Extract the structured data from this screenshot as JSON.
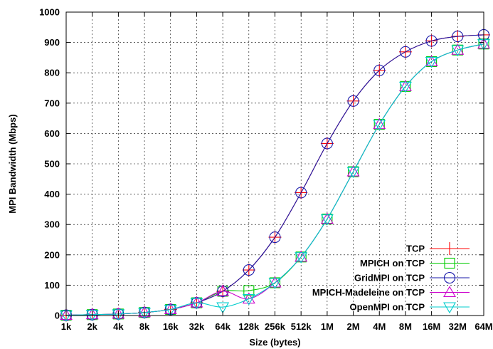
{
  "chart_data": {
    "type": "line",
    "xlabel": "Size (bytes)",
    "ylabel": "MPI Bandwidth (Mbps)",
    "categories": [
      "1k",
      "2k",
      "4k",
      "8k",
      "16k",
      "32k",
      "64k",
      "128k",
      "256k",
      "512k",
      "1M",
      "2M",
      "4M",
      "8M",
      "16M",
      "32M",
      "64M"
    ],
    "yticks": [
      0,
      100,
      200,
      300,
      400,
      500,
      600,
      700,
      800,
      900,
      1000
    ],
    "ylim": [
      0,
      1000
    ],
    "grid": true,
    "legend_position": "bottom-right",
    "series": [
      {
        "name": "TCP",
        "color": "#ff0000",
        "marker": "plus",
        "values": [
          1,
          3,
          5,
          10,
          20,
          42,
          80,
          150,
          258,
          405,
          567,
          707,
          808,
          869,
          905,
          920,
          925
        ]
      },
      {
        "name": "MPICH on TCP",
        "color": "#00cc00",
        "marker": "square",
        "values": [
          1,
          3,
          5,
          10,
          20,
          42,
          80,
          82,
          108,
          193,
          318,
          474,
          630,
          755,
          837,
          875,
          895
        ]
      },
      {
        "name": "GridMPI on TCP",
        "color": "#1a1aaa",
        "marker": "circle",
        "values": [
          1,
          3,
          5,
          10,
          20,
          42,
          80,
          150,
          258,
          405,
          567,
          707,
          808,
          869,
          905,
          920,
          925
        ]
      },
      {
        "name": "MPICH-Madeleine on TCP",
        "color": "#cc00cc",
        "marker": "triangle-up",
        "values": [
          1,
          3,
          5,
          10,
          20,
          42,
          80,
          55,
          108,
          193,
          318,
          474,
          630,
          755,
          837,
          875,
          895
        ]
      },
      {
        "name": "OpenMPI on TCP",
        "color": "#00cccc",
        "marker": "triangle-down",
        "values": [
          1,
          3,
          5,
          10,
          20,
          42,
          28,
          55,
          108,
          193,
          318,
          474,
          630,
          755,
          837,
          875,
          895
        ]
      }
    ]
  }
}
